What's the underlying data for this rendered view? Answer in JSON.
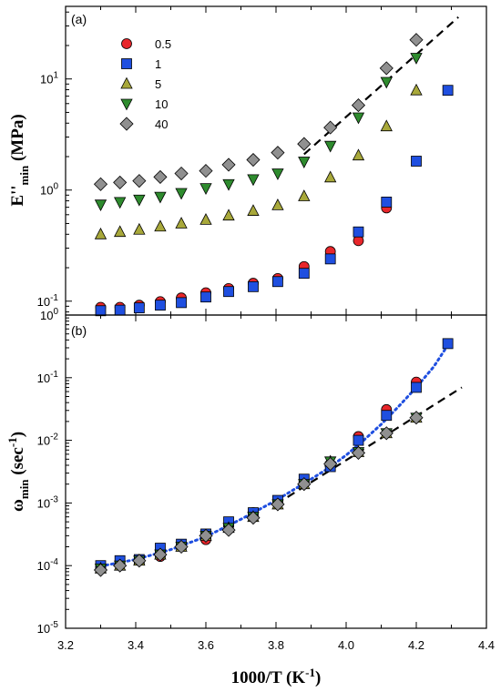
{
  "chart_data": {
    "type": "scatter",
    "xlabel": "1000/T (K",
    "xlabel_sup": "-1",
    "xlabel_close": ")",
    "xlim": [
      3.2,
      4.4
    ],
    "x_ticks": [
      "3.2",
      "3.4",
      "3.6",
      "3.8",
      "4.0",
      "4.2",
      "4.4"
    ],
    "colors": {
      "s0.5": "#e8262b",
      "s1": "#1f4fe0",
      "s5": "#a8a83a",
      "s10": "#2e8b2e",
      "s40": "#909090"
    },
    "panels": [
      {
        "label": "(a)",
        "ylabel_main": "E''",
        "ylabel_sub": "min",
        "ylabel_unit": " (MPa)",
        "yscale": "log",
        "ylim": [
          0.075,
          45
        ],
        "y_ticks": [
          {
            "value": 0.1,
            "base": "10",
            "exp": "-1"
          },
          {
            "value": 1,
            "base": "10",
            "exp": "0"
          },
          {
            "value": 10,
            "base": "10",
            "exp": "1"
          }
        ],
        "legend": [
          {
            "label": "0.5",
            "key": "s0.5",
            "marker": "circle"
          },
          {
            "label": "1",
            "key": "s1",
            "marker": "square"
          },
          {
            "label": "5",
            "key": "s5",
            "marker": "triangle-up"
          },
          {
            "label": "10",
            "key": "s10",
            "marker": "triangle-down"
          },
          {
            "label": "40",
            "key": "s40",
            "marker": "diamond"
          }
        ],
        "series": [
          {
            "key": "s0.5",
            "marker": "circle",
            "x": [
              3.3,
              3.355,
              3.41,
              3.47,
              3.53,
              3.6,
              3.665,
              3.735,
              3.805,
              3.88,
              3.955,
              4.035,
              4.115
            ],
            "y": [
              0.088,
              0.088,
              0.092,
              0.099,
              0.107,
              0.119,
              0.13,
              0.145,
              0.16,
              0.205,
              0.28,
              0.35,
              0.69
            ]
          },
          {
            "key": "s1",
            "marker": "square",
            "x": [
              3.3,
              3.355,
              3.41,
              3.47,
              3.53,
              3.6,
              3.665,
              3.735,
              3.805,
              3.88,
              3.955,
              4.035,
              4.115,
              4.2,
              4.29
            ],
            "y": [
              0.082,
              0.083,
              0.087,
              0.092,
              0.097,
              0.109,
              0.122,
              0.135,
              0.15,
              0.178,
              0.24,
              0.42,
              0.78,
              1.82,
              7.9
            ]
          },
          {
            "key": "s5",
            "marker": "triangle-up",
            "x": [
              3.3,
              3.355,
              3.41,
              3.47,
              3.53,
              3.6,
              3.665,
              3.735,
              3.805,
              3.88,
              3.955,
              4.035,
              4.115,
              4.2
            ],
            "y": [
              0.4,
              0.42,
              0.44,
              0.47,
              0.5,
              0.54,
              0.59,
              0.65,
              0.73,
              0.88,
              1.3,
              2.05,
              3.75,
              7.9
            ]
          },
          {
            "key": "s10",
            "marker": "triangle-down",
            "x": [
              3.3,
              3.355,
              3.41,
              3.47,
              3.53,
              3.6,
              3.665,
              3.735,
              3.805,
              3.88,
              3.955,
              4.035,
              4.115,
              4.2
            ],
            "y": [
              0.74,
              0.78,
              0.82,
              0.87,
              0.94,
              1.04,
              1.13,
              1.25,
              1.41,
              1.8,
              2.5,
              4.5,
              9.4,
              15.5
            ]
          },
          {
            "key": "s40",
            "marker": "diamond",
            "x": [
              3.3,
              3.355,
              3.41,
              3.47,
              3.53,
              3.6,
              3.665,
              3.735,
              3.805,
              3.88,
              3.955,
              4.035,
              4.115,
              4.2
            ],
            "y": [
              1.13,
              1.17,
              1.21,
              1.31,
              1.41,
              1.49,
              1.69,
              1.87,
              2.17,
              2.6,
              3.65,
              5.8,
              12.5,
              22.5
            ]
          }
        ],
        "fits": [
          {
            "style": "dashed-black",
            "x": [
              3.88,
              4.32
            ],
            "y": [
              2.1,
              36.0
            ]
          }
        ]
      },
      {
        "label": "(b)",
        "ylabel_main": "ω",
        "ylabel_sub": "min",
        "ylabel_unit": " (sec",
        "ylabel_sup": "-1",
        "ylabel_close": ")",
        "yscale": "log",
        "ylim": [
          1e-05,
          1
        ],
        "y_ticks": [
          {
            "value": 1e-05,
            "base": "10",
            "exp": "-5"
          },
          {
            "value": 0.0001,
            "base": "10",
            "exp": "-4"
          },
          {
            "value": 0.001,
            "base": "10",
            "exp": "-3"
          },
          {
            "value": 0.01,
            "base": "10",
            "exp": "-2"
          },
          {
            "value": 0.1,
            "base": "10",
            "exp": "-1"
          },
          {
            "value": 1,
            "base": "10",
            "exp": "0"
          }
        ],
        "series": [
          {
            "key": "s0.5",
            "marker": "circle",
            "x": [
              3.3,
              3.355,
              3.41,
              3.47,
              3.53,
              3.6,
              3.665,
              3.735,
              3.805,
              3.88,
              3.955,
              4.035,
              4.115,
              4.2
            ],
            "y": [
              9.5e-05,
              0.00011,
              0.00012,
              0.00014,
              0.00021,
              0.00026,
              0.00043,
              0.0007,
              0.001,
              0.0022,
              0.0042,
              0.0115,
              0.031,
              0.085
            ]
          },
          {
            "key": "s1",
            "marker": "square",
            "x": [
              3.3,
              3.355,
              3.41,
              3.47,
              3.53,
              3.6,
              3.665,
              3.735,
              3.805,
              3.88,
              3.955,
              4.035,
              4.115,
              4.2,
              4.29
            ],
            "y": [
              0.0001,
              0.00012,
              0.000125,
              0.00019,
              0.00022,
              0.00032,
              0.0005,
              0.0007,
              0.0011,
              0.0024,
              0.0038,
              0.01,
              0.025,
              0.07,
              0.35
            ]
          },
          {
            "key": "s5",
            "marker": "triangle-up",
            "x": [
              3.3,
              3.355,
              3.41,
              3.47,
              3.53,
              3.6,
              3.665,
              3.735,
              3.805,
              3.88,
              3.955,
              4.035,
              4.115,
              4.2
            ],
            "y": [
              9e-05,
              0.0001,
              0.00012,
              0.00015,
              0.0002,
              0.0003,
              0.0004,
              0.0006,
              0.00095,
              0.002,
              0.0046,
              0.0065,
              0.013,
              0.023
            ]
          },
          {
            "key": "s10",
            "marker": "triangle-down",
            "x": [
              3.3,
              3.355,
              3.41,
              3.47,
              3.53,
              3.6,
              3.665,
              3.735,
              3.805,
              3.88,
              3.955,
              4.035,
              4.115,
              4.2
            ],
            "y": [
              9e-05,
              0.0001,
              0.00012,
              0.00015,
              0.0002,
              0.0003,
              0.0004,
              0.0006,
              0.00095,
              0.002,
              0.0046,
              0.0065,
              0.013,
              0.023
            ]
          },
          {
            "key": "s40",
            "marker": "diamond",
            "x": [
              3.3,
              3.355,
              3.41,
              3.47,
              3.53,
              3.6,
              3.665,
              3.735,
              3.805,
              3.88,
              3.955,
              4.035,
              4.115,
              4.2
            ],
            "y": [
              8.5e-05,
              0.0001,
              0.00012,
              0.00015,
              0.0002,
              0.0003,
              0.00037,
              0.00058,
              0.00095,
              0.002,
              0.0042,
              0.0063,
              0.013,
              0.023
            ]
          }
        ],
        "fits": [
          {
            "style": "dotted-blue",
            "x": [
              3.3,
              3.4,
              3.5,
              3.6,
              3.7,
              3.8,
              3.9,
              3.95,
              4.0,
              4.05,
              4.1,
              4.15,
              4.2,
              4.25,
              4.29
            ],
            "y": [
              9.8e-05,
              0.000125,
              0.00018,
              0.00029,
              0.00055,
              0.0011,
              0.0024,
              0.0036,
              0.0058,
              0.01,
              0.018,
              0.035,
              0.07,
              0.15,
              0.33
            ]
          },
          {
            "style": "dashed-black",
            "x": [
              3.8,
              4.33
            ],
            "y": [
              0.00095,
              0.07
            ]
          }
        ]
      }
    ]
  }
}
